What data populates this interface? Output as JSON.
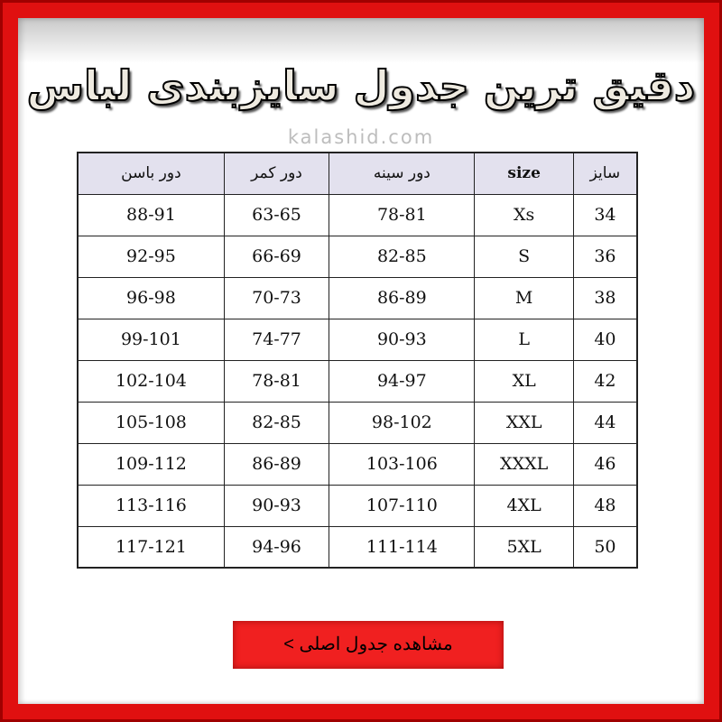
{
  "title": "دقیق ترین جدول سایزبندی لباس",
  "watermark": "kalashid.com",
  "table": {
    "headers": [
      "سایز",
      "size",
      "دور سینه",
      "دور کمر",
      "دور باسن"
    ],
    "rows": [
      [
        "34",
        "Xs",
        "78-81",
        "63-65",
        "88-91"
      ],
      [
        "36",
        "S",
        "82-85",
        "66-69",
        "92-95"
      ],
      [
        "38",
        "M",
        "86-89",
        "70-73",
        "96-98"
      ],
      [
        "40",
        "L",
        "90-93",
        "74-77",
        "99-101"
      ],
      [
        "42",
        "XL",
        "94-97",
        "78-81",
        "102-104"
      ],
      [
        "44",
        "XXL",
        "98-102",
        "82-85",
        "105-108"
      ],
      [
        "46",
        "XXXL",
        "103-106",
        "86-89",
        "109-112"
      ],
      [
        "48",
        "4XL",
        "107-110",
        "90-93",
        "113-116"
      ],
      [
        "50",
        "5XL",
        "111-114",
        "94-96",
        "117-121"
      ]
    ]
  },
  "button": "مشاهده جدول اصلی >",
  "colors": {
    "frame": "#e01010",
    "header_bg": "#e3e1ee",
    "button": "#f02020"
  }
}
